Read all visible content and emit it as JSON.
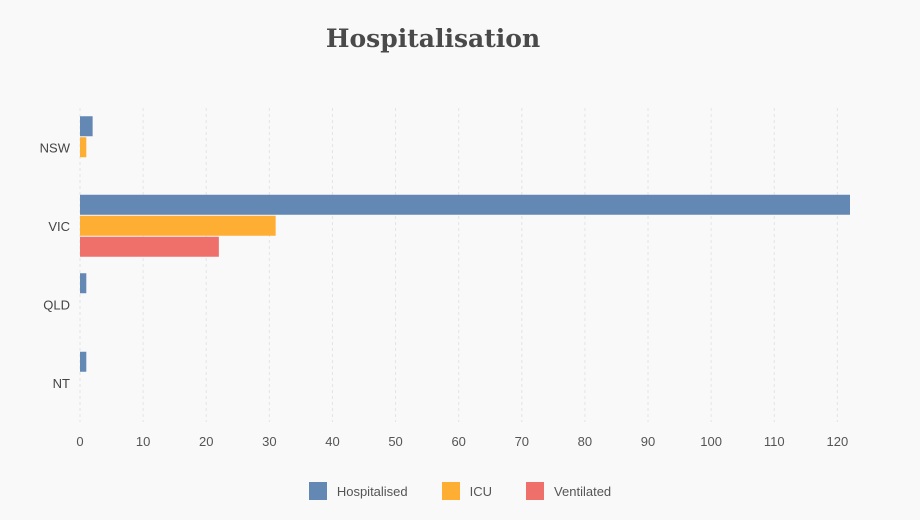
{
  "chart_data": {
    "type": "bar",
    "orientation": "horizontal",
    "title": "Hospitalisation",
    "categories": [
      "NSW",
      "VIC",
      "QLD",
      "NT"
    ],
    "series": [
      {
        "name": "Hospitalised",
        "color": "#6388b4",
        "values": [
          2,
          122,
          1,
          1
        ]
      },
      {
        "name": "ICU",
        "color": "#ffae34",
        "values": [
          1,
          31,
          0,
          0
        ]
      },
      {
        "name": "Ventilated",
        "color": "#ef6f6a",
        "values": [
          0,
          22,
          0,
          0
        ]
      }
    ],
    "xlim": [
      0,
      122
    ],
    "xticks": [
      0,
      10,
      20,
      30,
      40,
      50,
      60,
      70,
      80,
      90,
      100,
      110,
      120
    ],
    "grid": "vertical",
    "legend": "bottom-center"
  }
}
